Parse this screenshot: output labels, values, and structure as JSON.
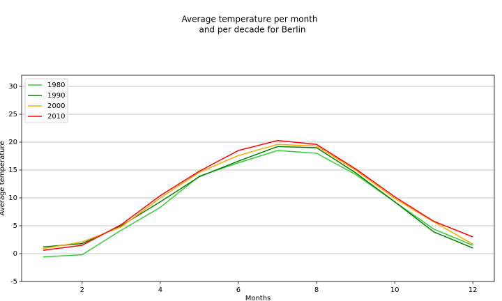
{
  "chart_data": {
    "type": "line",
    "title": [
      "Average temperature per month",
      "and per decade for Berlin"
    ],
    "x_label": "Months",
    "y_label": "Average temperature",
    "x": [
      1,
      2,
      3,
      4,
      5,
      6,
      7,
      8,
      9,
      10,
      11,
      12
    ],
    "series": [
      {
        "name": "1980",
        "color": "#32cd32",
        "values": [
          -0.6,
          -0.2,
          4.2,
          8.3,
          13.9,
          16.3,
          18.5,
          18.0,
          14.2,
          9.3,
          4.4,
          1.5
        ]
      },
      {
        "name": "1990",
        "color": "#008000",
        "values": [
          1.2,
          1.8,
          5.0,
          9.3,
          13.8,
          16.6,
          19.2,
          19.0,
          14.5,
          9.3,
          3.9,
          1.0
        ]
      },
      {
        "name": "2000",
        "color": "#ffa500",
        "values": [
          0.9,
          2.1,
          4.8,
          10.0,
          14.6,
          17.6,
          19.6,
          19.3,
          15.0,
          9.9,
          5.7,
          1.7
        ]
      },
      {
        "name": "2010",
        "color": "#ff0000",
        "values": [
          0.6,
          1.5,
          5.2,
          10.4,
          14.8,
          18.5,
          20.3,
          19.6,
          15.2,
          10.2,
          5.8,
          3.0
        ]
      }
    ],
    "xlim": [
      0.45,
      12.55
    ],
    "ylim": [
      -5,
      32
    ],
    "xticks": [
      2,
      4,
      6,
      8,
      10,
      12
    ],
    "yticks": [
      -5,
      0,
      5,
      10,
      15,
      20,
      25,
      30
    ],
    "grid": "y",
    "legend": "upper-left"
  }
}
